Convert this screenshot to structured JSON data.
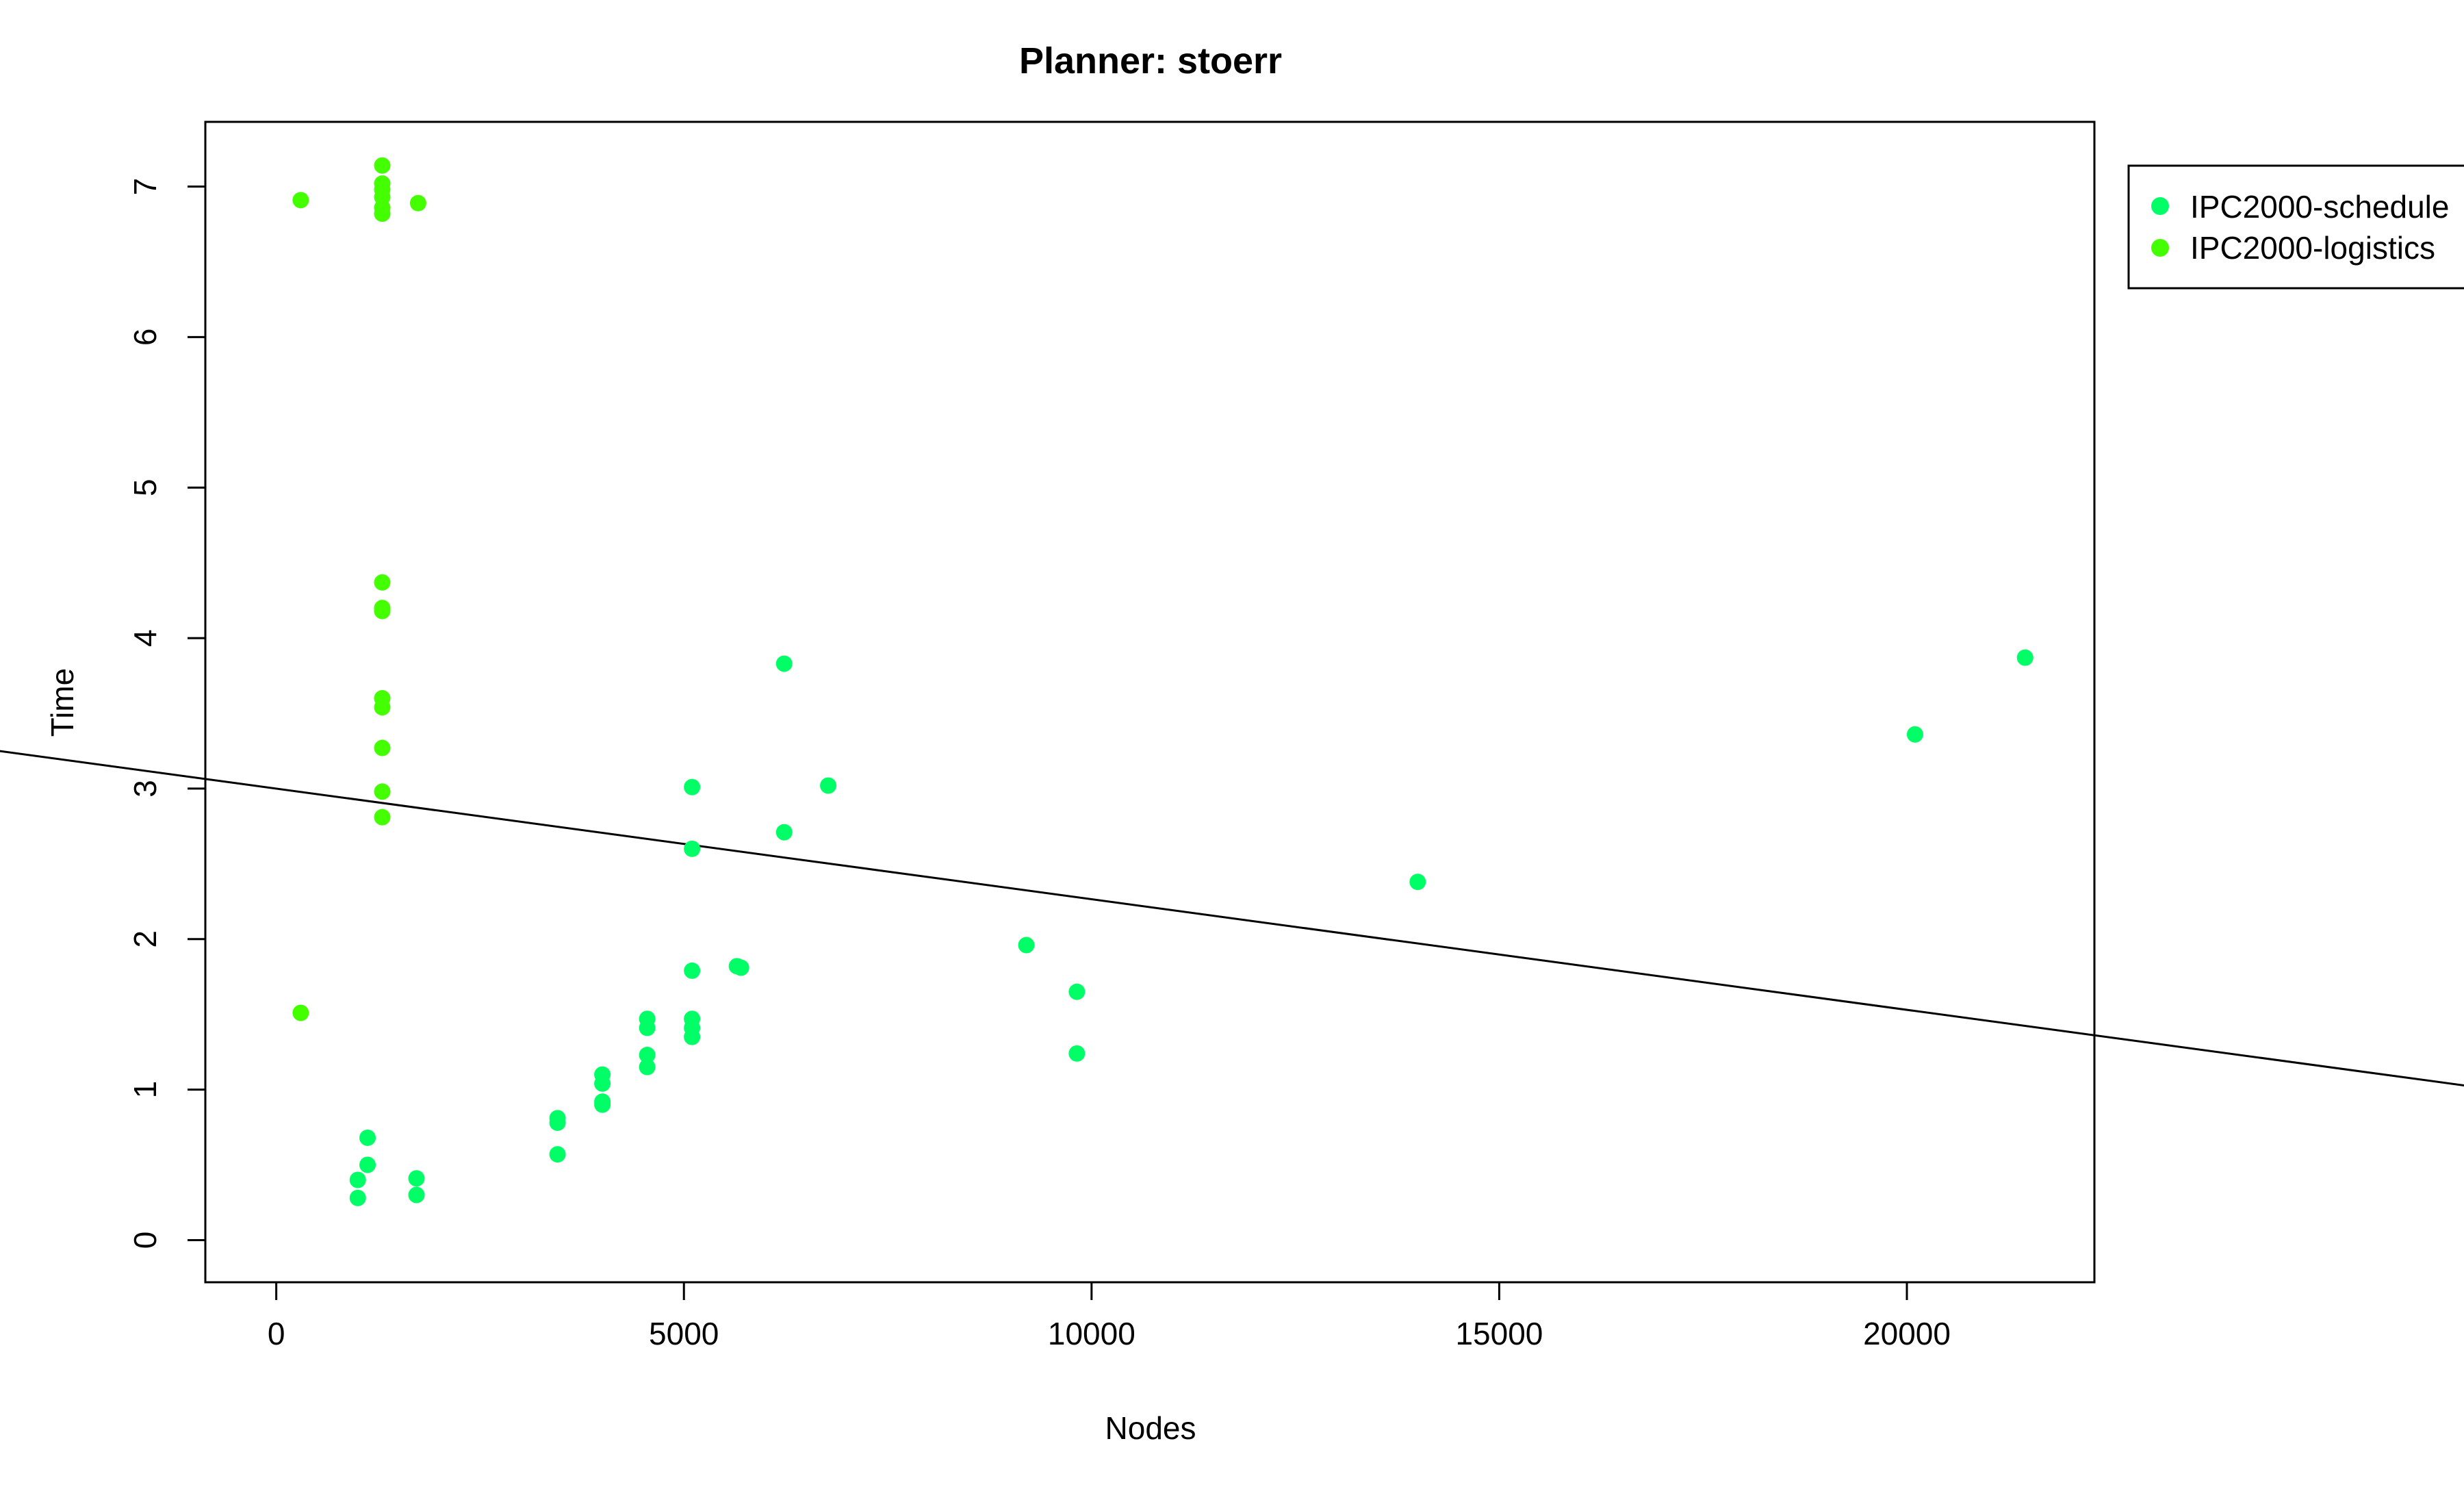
{
  "chart_data": {
    "type": "scatter",
    "title": "Planner: stoerr",
    "xlabel": "Nodes",
    "ylabel": "Time",
    "xlim": [
      -870,
      22300
    ],
    "ylim": [
      -0.28,
      7.43
    ],
    "x_ticks": [
      0,
      5000,
      10000,
      15000,
      20000
    ],
    "x_tick_labels": [
      "0",
      "5000",
      "10000",
      "15000",
      "20000"
    ],
    "y_ticks": [
      0,
      1,
      2,
      3,
      4,
      5,
      6,
      7
    ],
    "y_tick_labels": [
      "0",
      "1",
      "2",
      "3",
      "4",
      "5",
      "6",
      "7"
    ],
    "grid": false,
    "legend_position": "top-right, outside plot area",
    "series": [
      {
        "name": "IPC2000-schedule",
        "color": "#00ff66",
        "points": [
          [
            1000,
            0.28
          ],
          [
            1000,
            0.4
          ],
          [
            1120,
            0.5
          ],
          [
            1120,
            0.68
          ],
          [
            1720,
            0.3
          ],
          [
            1720,
            0.41
          ],
          [
            3450,
            0.57
          ],
          [
            3450,
            0.78
          ],
          [
            3450,
            0.81
          ],
          [
            4000,
            0.9
          ],
          [
            4000,
            0.92
          ],
          [
            4000,
            1.04
          ],
          [
            4000,
            1.1
          ],
          [
            4550,
            1.15
          ],
          [
            4550,
            1.23
          ],
          [
            4550,
            1.41
          ],
          [
            4550,
            1.47
          ],
          [
            5100,
            1.35
          ],
          [
            5100,
            1.41
          ],
          [
            5100,
            1.47
          ],
          [
            5100,
            1.79
          ],
          [
            5100,
            2.6
          ],
          [
            5100,
            3.01
          ],
          [
            5650,
            1.82
          ],
          [
            5700,
            1.81
          ],
          [
            6230,
            2.71
          ],
          [
            6230,
            3.83
          ],
          [
            6770,
            3.02
          ],
          [
            9200,
            1.96
          ],
          [
            9820,
            1.24
          ],
          [
            9820,
            1.65
          ],
          [
            14000,
            2.38
          ],
          [
            20100,
            3.36
          ],
          [
            21450,
            3.87
          ]
        ]
      },
      {
        "name": "IPC2000-logistics",
        "color": "#44ff00",
        "points": [
          [
            300,
            1.51
          ],
          [
            300,
            6.91
          ],
          [
            1300,
            2.81
          ],
          [
            1300,
            2.98
          ],
          [
            1300,
            3.27
          ],
          [
            1300,
            3.54
          ],
          [
            1300,
            3.6
          ],
          [
            1300,
            4.18
          ],
          [
            1300,
            4.2
          ],
          [
            1300,
            4.37
          ],
          [
            1300,
            6.82
          ],
          [
            1300,
            6.86
          ],
          [
            1300,
            6.93
          ],
          [
            1300,
            6.98
          ],
          [
            1300,
            7.02
          ],
          [
            1300,
            7.14
          ],
          [
            1740,
            6.89
          ]
        ]
      }
    ],
    "regression_line": {
      "intercept": 3.0,
      "slope": -7.35e-05,
      "color": "#000000"
    }
  }
}
